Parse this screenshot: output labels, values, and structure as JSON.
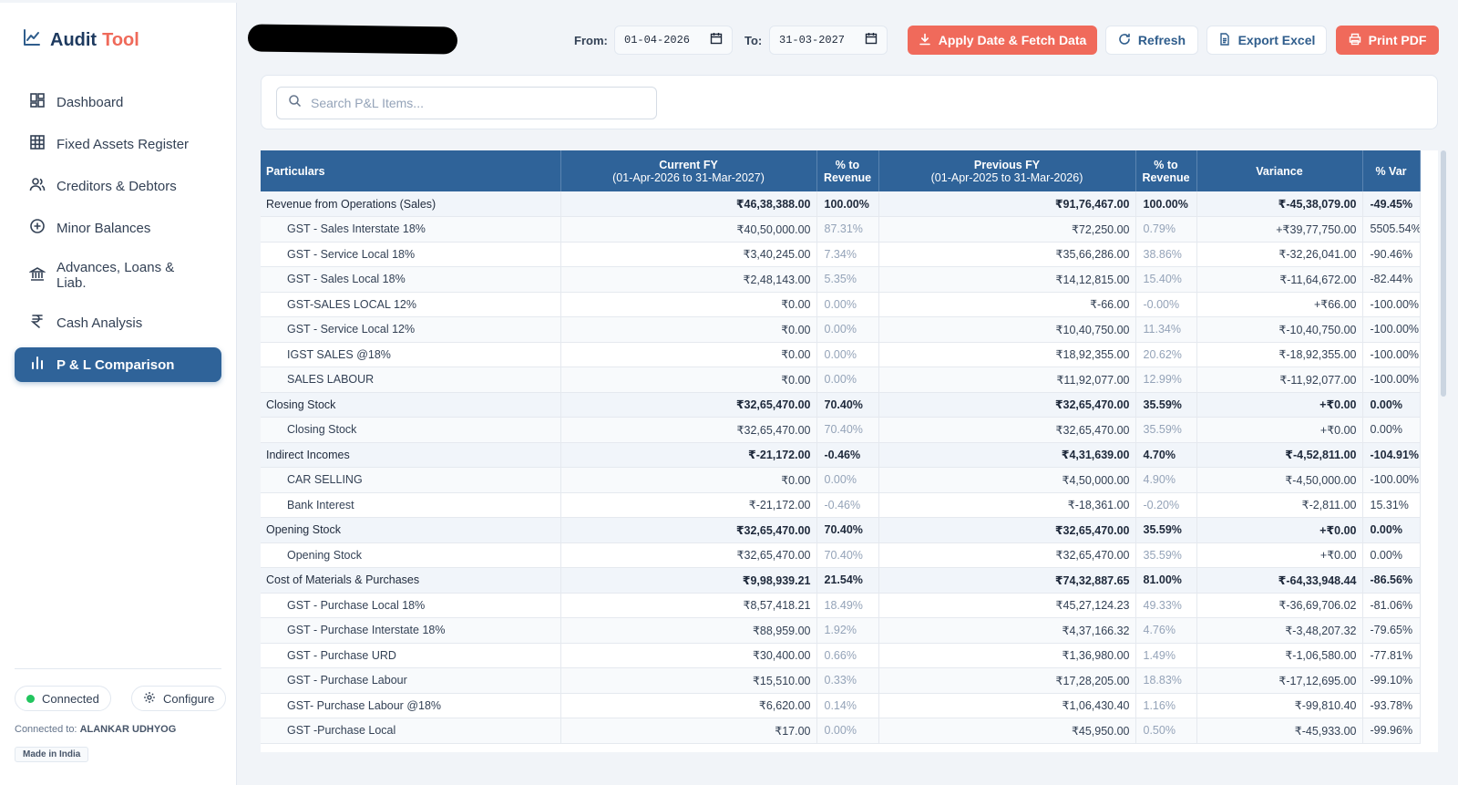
{
  "brand": {
    "part1": "Audit",
    "part2": "Tool"
  },
  "nav": [
    {
      "label": "Dashboard",
      "icon": "dashboard-icon"
    },
    {
      "label": "Fixed Assets Register",
      "icon": "grid-icon"
    },
    {
      "label": "Creditors & Debtors",
      "icon": "users-icon"
    },
    {
      "label": "Minor Balances",
      "icon": "plus-circle-icon"
    },
    {
      "label": "Advances, Loans & Liab.",
      "icon": "bank-icon"
    },
    {
      "label": "Cash Analysis",
      "icon": "rupee-icon"
    },
    {
      "label": "P & L Comparison",
      "icon": "bar-chart-icon",
      "active": true
    }
  ],
  "status": {
    "connected": "Connected",
    "configure": "Configure",
    "connected_to_label": "Connected to:",
    "company": "ALANKAR UDHYOG",
    "made_in": "Made in India"
  },
  "toolbar": {
    "from_label": "From:",
    "from_value": "01-04-2026",
    "to_label": "To:",
    "to_value": "31-03-2027",
    "apply": "Apply Date & Fetch Data",
    "refresh": "Refresh",
    "export": "Export Excel",
    "print": "Print PDF"
  },
  "search": {
    "placeholder": "Search P&L Items..."
  },
  "table": {
    "headers": {
      "particulars": "Particulars",
      "current_fy": "Current FY",
      "current_range": "(01-Apr-2026 to 31-Mar-2027)",
      "pct_to": "% to",
      "revenue": "Revenue",
      "previous_fy": "Previous FY",
      "previous_range": "(01-Apr-2025 to 31-Mar-2026)",
      "variance": "Variance",
      "pct_var": "% Var"
    },
    "rows": [
      {
        "type": "group",
        "name": "Revenue from Operations (Sales)",
        "cur": "₹46,38,388.00",
        "cur_pct": "100.00%",
        "prev": "₹91,76,467.00",
        "prev_pct": "100.00%",
        "var": "₹-45,38,079.00",
        "var_pct": "-49.45%"
      },
      {
        "type": "child",
        "name": "GST - Sales Interstate 18%",
        "cur": "₹40,50,000.00",
        "cur_pct": "87.31%",
        "prev": "₹72,250.00",
        "prev_pct": "0.79%",
        "var": "+₹39,77,750.00",
        "var_pct": "5505.54%"
      },
      {
        "type": "child",
        "name": "GST - Service Local 18%",
        "cur": "₹3,40,245.00",
        "cur_pct": "7.34%",
        "prev": "₹35,66,286.00",
        "prev_pct": "38.86%",
        "var": "₹-32,26,041.00",
        "var_pct": "-90.46%"
      },
      {
        "type": "child",
        "name": "GST - Sales Local 18%",
        "cur": "₹2,48,143.00",
        "cur_pct": "5.35%",
        "prev": "₹14,12,815.00",
        "prev_pct": "15.40%",
        "var": "₹-11,64,672.00",
        "var_pct": "-82.44%"
      },
      {
        "type": "child",
        "name": "GST-SALES LOCAL 12%",
        "cur": "₹0.00",
        "cur_pct": "0.00%",
        "prev": "₹-66.00",
        "prev_pct": "-0.00%",
        "var": "+₹66.00",
        "var_pct": "-100.00%"
      },
      {
        "type": "child",
        "name": "GST - Service Local 12%",
        "cur": "₹0.00",
        "cur_pct": "0.00%",
        "prev": "₹10,40,750.00",
        "prev_pct": "11.34%",
        "var": "₹-10,40,750.00",
        "var_pct": "-100.00%"
      },
      {
        "type": "child",
        "name": "IGST SALES @18%",
        "cur": "₹0.00",
        "cur_pct": "0.00%",
        "prev": "₹18,92,355.00",
        "prev_pct": "20.62%",
        "var": "₹-18,92,355.00",
        "var_pct": "-100.00%"
      },
      {
        "type": "child",
        "name": "SALES LABOUR",
        "cur": "₹0.00",
        "cur_pct": "0.00%",
        "prev": "₹11,92,077.00",
        "prev_pct": "12.99%",
        "var": "₹-11,92,077.00",
        "var_pct": "-100.00%"
      },
      {
        "type": "group",
        "name": "Closing Stock",
        "cur": "₹32,65,470.00",
        "cur_pct": "70.40%",
        "prev": "₹32,65,470.00",
        "prev_pct": "35.59%",
        "var": "+₹0.00",
        "var_pct": "0.00%"
      },
      {
        "type": "child",
        "name": "Closing Stock",
        "cur": "₹32,65,470.00",
        "cur_pct": "70.40%",
        "prev": "₹32,65,470.00",
        "prev_pct": "35.59%",
        "var": "+₹0.00",
        "var_pct": "0.00%"
      },
      {
        "type": "group",
        "name": "Indirect Incomes",
        "cur": "₹-21,172.00",
        "cur_pct": "-0.46%",
        "prev": "₹4,31,639.00",
        "prev_pct": "4.70%",
        "var": "₹-4,52,811.00",
        "var_pct": "-104.91%"
      },
      {
        "type": "child",
        "name": "CAR SELLING",
        "cur": "₹0.00",
        "cur_pct": "0.00%",
        "prev": "₹4,50,000.00",
        "prev_pct": "4.90%",
        "var": "₹-4,50,000.00",
        "var_pct": "-100.00%"
      },
      {
        "type": "child",
        "name": "Bank Interest",
        "cur": "₹-21,172.00",
        "cur_pct": "-0.46%",
        "prev": "₹-18,361.00",
        "prev_pct": "-0.20%",
        "var": "₹-2,811.00",
        "var_pct": "15.31%"
      },
      {
        "type": "group",
        "name": "Opening Stock",
        "cur": "₹32,65,470.00",
        "cur_pct": "70.40%",
        "prev": "₹32,65,470.00",
        "prev_pct": "35.59%",
        "var": "+₹0.00",
        "var_pct": "0.00%"
      },
      {
        "type": "child",
        "name": "Opening Stock",
        "cur": "₹32,65,470.00",
        "cur_pct": "70.40%",
        "prev": "₹32,65,470.00",
        "prev_pct": "35.59%",
        "var": "+₹0.00",
        "var_pct": "0.00%"
      },
      {
        "type": "group",
        "name": "Cost of Materials & Purchases",
        "cur": "₹9,98,939.21",
        "cur_pct": "21.54%",
        "prev": "₹74,32,887.65",
        "prev_pct": "81.00%",
        "var": "₹-64,33,948.44",
        "var_pct": "-86.56%"
      },
      {
        "type": "child",
        "name": "GST - Purchase Local 18%",
        "cur": "₹8,57,418.21",
        "cur_pct": "18.49%",
        "prev": "₹45,27,124.23",
        "prev_pct": "49.33%",
        "var": "₹-36,69,706.02",
        "var_pct": "-81.06%"
      },
      {
        "type": "child",
        "name": "GST - Purchase Interstate 18%",
        "cur": "₹88,959.00",
        "cur_pct": "1.92%",
        "prev": "₹4,37,166.32",
        "prev_pct": "4.76%",
        "var": "₹-3,48,207.32",
        "var_pct": "-79.65%"
      },
      {
        "type": "child",
        "name": "GST - Purchase URD",
        "cur": "₹30,400.00",
        "cur_pct": "0.66%",
        "prev": "₹1,36,980.00",
        "prev_pct": "1.49%",
        "var": "₹-1,06,580.00",
        "var_pct": "-77.81%"
      },
      {
        "type": "child",
        "name": "GST - Purchase Labour",
        "cur": "₹15,510.00",
        "cur_pct": "0.33%",
        "prev": "₹17,28,205.00",
        "prev_pct": "18.83%",
        "var": "₹-17,12,695.00",
        "var_pct": "-99.10%"
      },
      {
        "type": "child",
        "name": "GST- Purchase Labour @18%",
        "cur": "₹6,620.00",
        "cur_pct": "0.14%",
        "prev": "₹1,06,430.40",
        "prev_pct": "1.16%",
        "var": "₹-99,810.40",
        "var_pct": "-93.78%"
      },
      {
        "type": "child",
        "name": "GST -Purchase Local",
        "cur": "₹17.00",
        "cur_pct": "0.00%",
        "prev": "₹45,950.00",
        "prev_pct": "0.50%",
        "var": "₹-45,933.00",
        "var_pct": "-99.96%"
      }
    ]
  }
}
